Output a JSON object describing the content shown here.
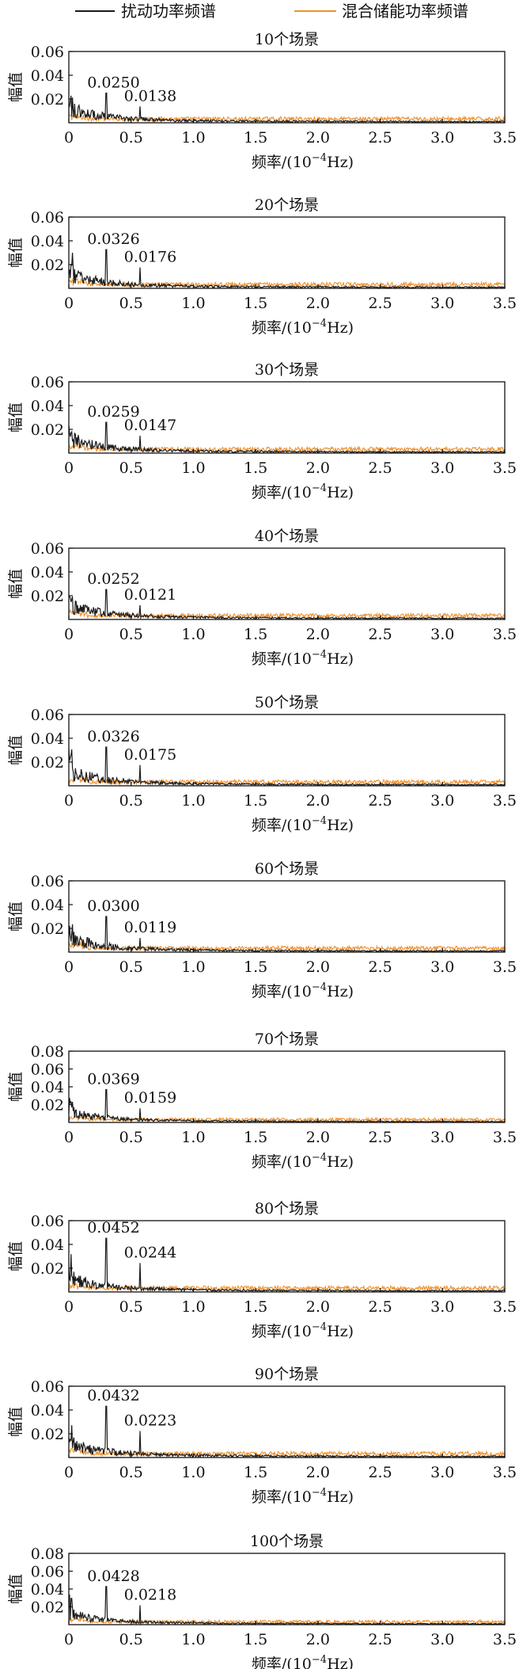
{
  "legend": {
    "items": [
      {
        "label": "扰动功率频谱",
        "color": "#1a1a1a"
      },
      {
        "label": "混合储能功率频谱",
        "color": "#f0902a"
      }
    ]
  },
  "chart_data": [
    {
      "type": "line",
      "title": "10个场景",
      "ylabel": "幅值",
      "xlabel_main": "频率/(10",
      "xlabel_exp": "−4",
      "xlabel_unit": "Hz)",
      "xlim": [
        0,
        3.5
      ],
      "ylim": [
        0,
        0.06
      ],
      "xticks": [
        "0",
        "0.5",
        "1.0",
        "1.5",
        "2.0",
        "2.5",
        "3.0",
        "3.5"
      ],
      "yticks": [
        "0.02",
        "0.04",
        "0.06"
      ],
      "peaks": [
        {
          "x": 0.3,
          "y": 0.025,
          "label": "0.0250"
        },
        {
          "x": 0.57,
          "y": 0.0138,
          "label": "0.0138"
        }
      ],
      "series": [
        {
          "legend_index": 0
        },
        {
          "legend_index": 1
        }
      ]
    },
    {
      "type": "line",
      "title": "20个场景",
      "ylabel": "幅值",
      "xlabel_main": "频率/(10",
      "xlabel_exp": "−4",
      "xlabel_unit": "Hz)",
      "xlim": [
        0,
        3.5
      ],
      "ylim": [
        0,
        0.06
      ],
      "xticks": [
        "0",
        "0.5",
        "1.0",
        "1.5",
        "2.0",
        "2.5",
        "3.0",
        "3.5"
      ],
      "yticks": [
        "0.02",
        "0.04",
        "0.06"
      ],
      "peaks": [
        {
          "x": 0.3,
          "y": 0.0326,
          "label": "0.0326"
        },
        {
          "x": 0.57,
          "y": 0.0176,
          "label": "0.0176"
        }
      ],
      "series": [
        {
          "legend_index": 0
        },
        {
          "legend_index": 1
        }
      ]
    },
    {
      "type": "line",
      "title": "30个场景",
      "ylabel": "幅值",
      "xlabel_main": "频率/(10",
      "xlabel_exp": "−4",
      "xlabel_unit": "Hz)",
      "xlim": [
        0,
        3.5
      ],
      "ylim": [
        0,
        0.06
      ],
      "xticks": [
        "0",
        "0.5",
        "1.0",
        "1.5",
        "2.0",
        "2.5",
        "3.0",
        "3.5"
      ],
      "yticks": [
        "0.02",
        "0.04",
        "0.06"
      ],
      "peaks": [
        {
          "x": 0.3,
          "y": 0.0259,
          "label": "0.0259"
        },
        {
          "x": 0.57,
          "y": 0.0147,
          "label": "0.0147"
        }
      ],
      "series": [
        {
          "legend_index": 0
        },
        {
          "legend_index": 1
        }
      ]
    },
    {
      "type": "line",
      "title": "40个场景",
      "ylabel": "幅值",
      "xlabel_main": "频率/(10",
      "xlabel_exp": "−4",
      "xlabel_unit": "Hz)",
      "xlim": [
        0,
        3.5
      ],
      "ylim": [
        0,
        0.06
      ],
      "xticks": [
        "0",
        "0.5",
        "1.0",
        "1.5",
        "2.0",
        "2.5",
        "3.0",
        "3.5"
      ],
      "yticks": [
        "0.02",
        "0.04",
        "0.06"
      ],
      "peaks": [
        {
          "x": 0.3,
          "y": 0.0252,
          "label": "0.0252"
        },
        {
          "x": 0.57,
          "y": 0.0121,
          "label": "0.0121"
        }
      ],
      "series": [
        {
          "legend_index": 0
        },
        {
          "legend_index": 1
        }
      ]
    },
    {
      "type": "line",
      "title": "50个场景",
      "ylabel": "幅值",
      "xlabel_main": "频率/(10",
      "xlabel_exp": "−4",
      "xlabel_unit": "Hz)",
      "xlim": [
        0,
        3.5
      ],
      "ylim": [
        0,
        0.06
      ],
      "xticks": [
        "0",
        "0.5",
        "1.0",
        "1.5",
        "2.0",
        "2.5",
        "3.0",
        "3.5"
      ],
      "yticks": [
        "0.02",
        "0.04",
        "0.06"
      ],
      "peaks": [
        {
          "x": 0.3,
          "y": 0.0326,
          "label": "0.0326"
        },
        {
          "x": 0.57,
          "y": 0.0175,
          "label": "0.0175"
        }
      ],
      "series": [
        {
          "legend_index": 0
        },
        {
          "legend_index": 1
        }
      ]
    },
    {
      "type": "line",
      "title": "60个场景",
      "ylabel": "幅值",
      "xlabel_main": "频率/(10",
      "xlabel_exp": "−4",
      "xlabel_unit": "Hz)",
      "xlim": [
        0,
        3.5
      ],
      "ylim": [
        0,
        0.06
      ],
      "xticks": [
        "0",
        "0.5",
        "1.0",
        "1.5",
        "2.0",
        "2.5",
        "3.0",
        "3.5"
      ],
      "yticks": [
        "0.02",
        "0.04",
        "0.06"
      ],
      "peaks": [
        {
          "x": 0.3,
          "y": 0.03,
          "label": "0.0300"
        },
        {
          "x": 0.57,
          "y": 0.0119,
          "label": "0.0119"
        }
      ],
      "series": [
        {
          "legend_index": 0
        },
        {
          "legend_index": 1
        }
      ]
    },
    {
      "type": "line",
      "title": "70个场景",
      "ylabel": "幅值",
      "xlabel_main": "频率/(10",
      "xlabel_exp": "−4",
      "xlabel_unit": "Hz)",
      "xlim": [
        0,
        3.5
      ],
      "ylim": [
        0,
        0.08
      ],
      "xticks": [
        "0",
        "0.5",
        "1.0",
        "1.5",
        "2.0",
        "2.5",
        "3.0",
        "3.5"
      ],
      "yticks": [
        "0.02",
        "0.04",
        "0.06",
        "0.08"
      ],
      "peaks": [
        {
          "x": 0.3,
          "y": 0.0369,
          "label": "0.0369"
        },
        {
          "x": 0.57,
          "y": 0.0159,
          "label": "0.0159"
        }
      ],
      "series": [
        {
          "legend_index": 0
        },
        {
          "legend_index": 1
        }
      ]
    },
    {
      "type": "line",
      "title": "80个场景",
      "ylabel": "幅值",
      "xlabel_main": "频率/(10",
      "xlabel_exp": "−4",
      "xlabel_unit": "Hz)",
      "xlim": [
        0,
        3.5
      ],
      "ylim": [
        0,
        0.06
      ],
      "xticks": [
        "0",
        "0.5",
        "1.0",
        "1.5",
        "2.0",
        "2.5",
        "3.0",
        "3.5"
      ],
      "yticks": [
        "0.02",
        "0.04",
        "0.06"
      ],
      "peaks": [
        {
          "x": 0.3,
          "y": 0.0452,
          "label": "0.0452"
        },
        {
          "x": 0.57,
          "y": 0.0244,
          "label": "0.0244"
        }
      ],
      "series": [
        {
          "legend_index": 0
        },
        {
          "legend_index": 1
        }
      ]
    },
    {
      "type": "line",
      "title": "90个场景",
      "ylabel": "幅值",
      "xlabel_main": "频率/(10",
      "xlabel_exp": "−4",
      "xlabel_unit": "Hz)",
      "xlim": [
        0,
        3.5
      ],
      "ylim": [
        0,
        0.06
      ],
      "xticks": [
        "0",
        "0.5",
        "1.0",
        "1.5",
        "2.0",
        "2.5",
        "3.0",
        "3.5"
      ],
      "yticks": [
        "0.02",
        "0.04",
        "0.06"
      ],
      "peaks": [
        {
          "x": 0.3,
          "y": 0.0432,
          "label": "0.0432"
        },
        {
          "x": 0.57,
          "y": 0.0223,
          "label": "0.0223"
        }
      ],
      "series": [
        {
          "legend_index": 0
        },
        {
          "legend_index": 1
        }
      ]
    },
    {
      "type": "line",
      "title": "100个场景",
      "ylabel": "幅值",
      "xlabel_main": "频率/(10",
      "xlabel_exp": "−4",
      "xlabel_unit": "Hz)",
      "xlim": [
        0,
        3.5
      ],
      "ylim": [
        0,
        0.08
      ],
      "xticks": [
        "0",
        "0.5",
        "1.0",
        "1.5",
        "2.0",
        "2.5",
        "3.0",
        "3.5"
      ],
      "yticks": [
        "0.02",
        "0.04",
        "0.06",
        "0.08"
      ],
      "peaks": [
        {
          "x": 0.3,
          "y": 0.0428,
          "label": "0.0428"
        },
        {
          "x": 0.57,
          "y": 0.0218,
          "label": "0.0218"
        }
      ],
      "series": [
        {
          "legend_index": 0
        },
        {
          "legend_index": 1
        }
      ]
    }
  ]
}
